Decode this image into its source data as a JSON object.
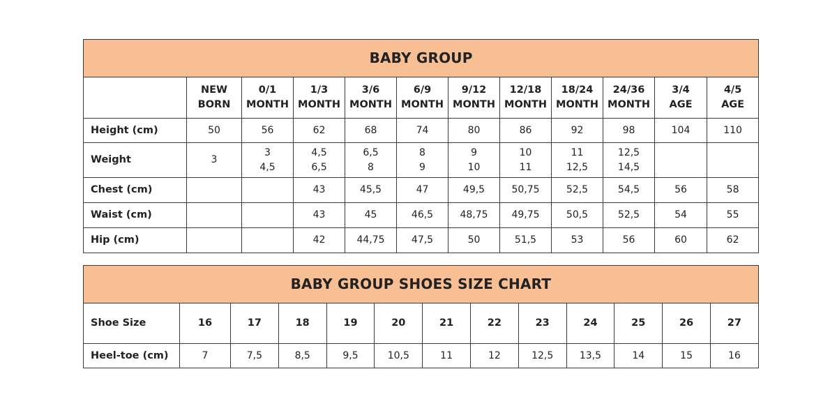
{
  "clothing": {
    "title": "BABY GROUP",
    "columns": [
      [
        "NEW",
        "BORN"
      ],
      [
        "0/1",
        "MONTH"
      ],
      [
        "1/3",
        "MONTH"
      ],
      [
        "3/6",
        "MONTH"
      ],
      [
        "6/9",
        "MONTH"
      ],
      [
        "9/12",
        "MONTH"
      ],
      [
        "12/18",
        "MONTH"
      ],
      [
        "18/24",
        "MONTH"
      ],
      [
        "24/36",
        "MONTH"
      ],
      [
        "3/4",
        "AGE"
      ],
      [
        "4/5",
        "AGE"
      ]
    ],
    "rows": [
      {
        "label": "Height (cm)",
        "cells": [
          [
            "50"
          ],
          [
            "56"
          ],
          [
            "62"
          ],
          [
            "68"
          ],
          [
            "74"
          ],
          [
            "80"
          ],
          [
            "86"
          ],
          [
            "92"
          ],
          [
            "98"
          ],
          [
            "104"
          ],
          [
            "110"
          ]
        ]
      },
      {
        "label": "Weight",
        "cells": [
          [
            "3"
          ],
          [
            "3",
            "4,5"
          ],
          [
            "4,5",
            "6,5"
          ],
          [
            "6,5",
            "8"
          ],
          [
            "8",
            "9"
          ],
          [
            "9",
            "10"
          ],
          [
            "10",
            "11"
          ],
          [
            "11",
            "12,5"
          ],
          [
            "12,5",
            "14,5"
          ],
          [],
          []
        ]
      },
      {
        "label": "Chest (cm)",
        "cells": [
          [],
          [],
          [
            "43"
          ],
          [
            "45,5"
          ],
          [
            "47"
          ],
          [
            "49,5"
          ],
          [
            "50,75"
          ],
          [
            "52,5"
          ],
          [
            "54,5"
          ],
          [
            "56"
          ],
          [
            "58"
          ]
        ]
      },
      {
        "label": "Waist (cm)",
        "cells": [
          [],
          [],
          [
            "43"
          ],
          [
            "45"
          ],
          [
            "46,5"
          ],
          [
            "48,75"
          ],
          [
            "49,75"
          ],
          [
            "50,5"
          ],
          [
            "52,5"
          ],
          [
            "54"
          ],
          [
            "55"
          ]
        ]
      },
      {
        "label": "Hip (cm)",
        "cells": [
          [],
          [],
          [
            "42"
          ],
          [
            "44,75"
          ],
          [
            "47,5"
          ],
          [
            "50"
          ],
          [
            "51,5"
          ],
          [
            "53"
          ],
          [
            "56"
          ],
          [
            "60"
          ],
          [
            "62"
          ]
        ]
      }
    ]
  },
  "shoes": {
    "title": "BABY GROUP SHOES SIZE CHART",
    "size_label": "Shoe Size",
    "sizes": [
      "16",
      "17",
      "18",
      "19",
      "20",
      "21",
      "22",
      "23",
      "24",
      "25",
      "26",
      "27"
    ],
    "heel_label": "Heel-toe (cm)",
    "heel_toe": [
      "7",
      "7,5",
      "8,5",
      "9,5",
      "10,5",
      "11",
      "12",
      "12,5",
      "13,5",
      "14",
      "15",
      "16"
    ]
  },
  "colors": {
    "header_band": "#f8bf94",
    "border": "#3a3a3a"
  }
}
